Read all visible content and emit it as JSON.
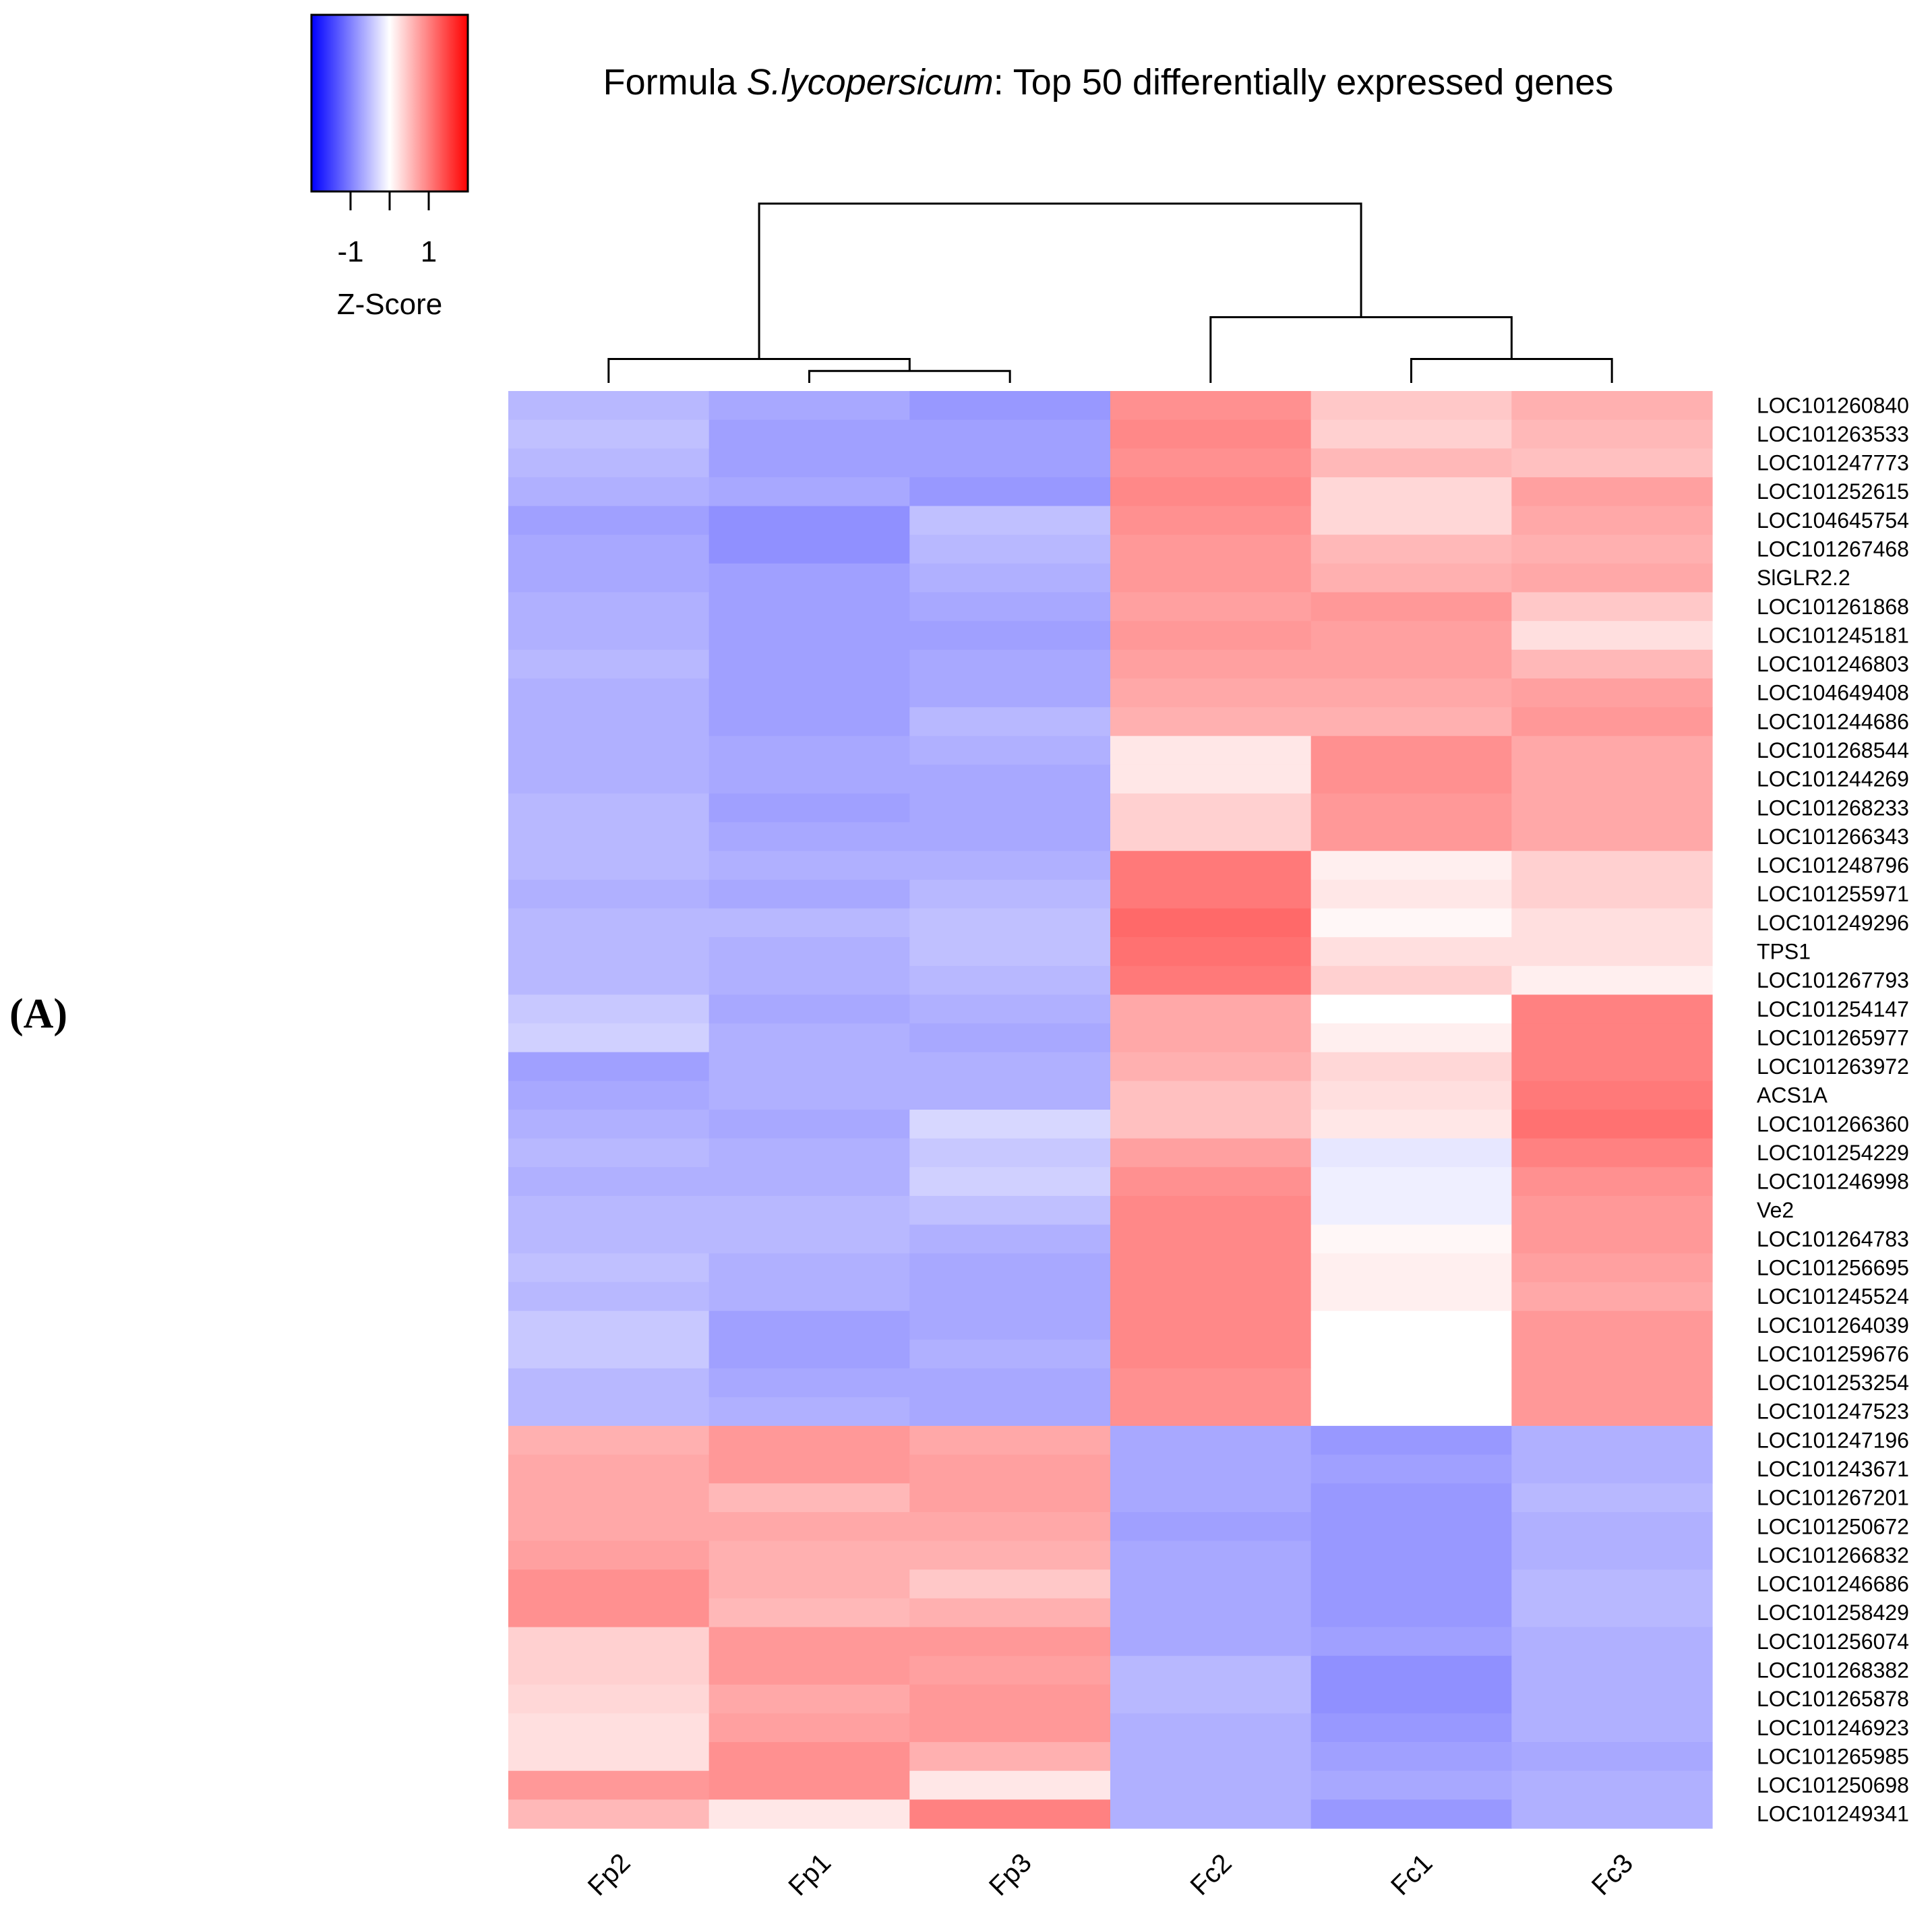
{
  "panel_label": "(A)",
  "chart_data": {
    "type": "heatmap",
    "title_prefix": "Formula ",
    "title_species": "S.lycopersicum",
    "title_suffix": ": Top 50 differentially expressed genes",
    "colorbar": {
      "label": "Z-Score",
      "ticks": [
        -1,
        1
      ],
      "tick_labels": [
        "-1",
        "1"
      ],
      "range": [
        -2,
        2
      ],
      "colors": {
        "low": "#0000ff",
        "mid": "#ffffff",
        "high": "#ff0000"
      }
    },
    "columns": [
      "Fp2",
      "Fp1",
      "Fp3",
      "Fc2",
      "Fc1",
      "Fc3"
    ],
    "column_dendrogram": {
      "merges": [
        {
          "left": "Fp1",
          "right": "Fp3",
          "height": 0.1
        },
        {
          "left": "Fc1",
          "right": "Fc3",
          "height": 0.2
        },
        {
          "left": "Fp2",
          "right": "Fp1+Fp3",
          "height": 0.2
        },
        {
          "left": "Fc2",
          "right": "Fc1+Fc3",
          "height": 0.55
        },
        {
          "left": "Fp",
          "right": "Fc",
          "height": 1.5
        }
      ]
    },
    "rows": [
      "LOC101260840",
      "LOC101263533",
      "LOC101247773",
      "LOC101252615",
      "LOC104645754",
      "LOC101267468",
      "SlGLR2.2",
      "LOC101261868",
      "LOC101245181",
      "LOC101246803",
      "LOC104649408",
      "LOC101244686",
      "LOC101268544",
      "LOC101244269",
      "LOC101268233",
      "LOC101266343",
      "LOC101248796",
      "LOC101255971",
      "LOC101249296",
      "TPS1",
      "LOC101267793",
      "LOC101254147",
      "LOC101265977",
      "LOC101263972",
      "ACS1A",
      "LOC101266360",
      "LOC101254229",
      "LOC101246998",
      "Ve2",
      "LOC101264783",
      "LOC101256695",
      "LOC101245524",
      "LOC101264039",
      "LOC101259676",
      "LOC101253254",
      "LOC101247523",
      "LOC101247196",
      "LOC101243671",
      "LOC101267201",
      "LOC101250672",
      "LOC101266832",
      "LOC101246686",
      "LOC101258429",
      "LOC101256074",
      "LOC101268382",
      "LOC101265878",
      "LOC101246923",
      "LOC101265985",
      "LOC101250698",
      "LOC101249341"
    ],
    "values": [
      [
        -0.9,
        -1.1,
        -1.3,
        1.4,
        0.7,
        1.0
      ],
      [
        -0.8,
        -1.2,
        -1.2,
        1.5,
        0.6,
        0.9
      ],
      [
        -0.9,
        -1.2,
        -1.2,
        1.4,
        0.9,
        0.8
      ],
      [
        -1.0,
        -1.1,
        -1.3,
        1.5,
        0.5,
        1.2
      ],
      [
        -1.2,
        -1.4,
        -0.8,
        1.4,
        0.5,
        1.1
      ],
      [
        -1.1,
        -1.4,
        -0.9,
        1.3,
        0.9,
        1.0
      ],
      [
        -1.1,
        -1.2,
        -1.0,
        1.3,
        1.0,
        1.1
      ],
      [
        -1.0,
        -1.2,
        -1.1,
        1.2,
        1.3,
        0.7
      ],
      [
        -1.0,
        -1.2,
        -1.2,
        1.3,
        1.2,
        0.4
      ],
      [
        -0.9,
        -1.2,
        -1.1,
        1.2,
        1.2,
        0.9
      ],
      [
        -1.0,
        -1.2,
        -1.1,
        1.1,
        1.1,
        1.2
      ],
      [
        -1.0,
        -1.2,
        -0.9,
        1.0,
        1.0,
        1.3
      ],
      [
        -1.0,
        -1.1,
        -1.0,
        0.3,
        1.4,
        1.1
      ],
      [
        -1.0,
        -1.1,
        -1.1,
        0.3,
        1.4,
        1.1
      ],
      [
        -0.9,
        -1.2,
        -1.1,
        0.6,
        1.3,
        1.1
      ],
      [
        -0.9,
        -1.1,
        -1.1,
        0.6,
        1.3,
        1.1
      ],
      [
        -0.9,
        -1.0,
        -1.0,
        1.7,
        0.2,
        0.6
      ],
      [
        -1.0,
        -1.1,
        -0.9,
        1.7,
        0.3,
        0.6
      ],
      [
        -0.9,
        -0.9,
        -0.8,
        1.9,
        0.1,
        0.4
      ],
      [
        -0.9,
        -1.0,
        -0.8,
        1.8,
        0.4,
        0.4
      ],
      [
        -0.9,
        -1.0,
        -0.9,
        1.7,
        0.6,
        0.2
      ],
      [
        -0.7,
        -1.1,
        -1.0,
        1.1,
        0.0,
        1.6
      ],
      [
        -0.6,
        -1.0,
        -1.1,
        1.1,
        0.2,
        1.6
      ],
      [
        -1.2,
        -1.0,
        -1.0,
        1.0,
        0.5,
        1.6
      ],
      [
        -1.1,
        -1.0,
        -1.0,
        0.8,
        0.4,
        1.7
      ],
      [
        -1.0,
        -1.1,
        -0.5,
        0.8,
        0.3,
        1.8
      ],
      [
        -0.9,
        -1.0,
        -0.7,
        1.2,
        -0.3,
        1.6
      ],
      [
        -1.0,
        -1.0,
        -0.6,
        1.4,
        -0.2,
        1.4
      ],
      [
        -0.9,
        -0.9,
        -0.8,
        1.5,
        -0.2,
        1.3
      ],
      [
        -0.9,
        -0.9,
        -1.0,
        1.5,
        0.1,
        1.3
      ],
      [
        -0.8,
        -1.0,
        -1.1,
        1.5,
        0.2,
        1.2
      ],
      [
        -0.9,
        -1.0,
        -1.1,
        1.5,
        0.2,
        1.1
      ],
      [
        -0.7,
        -1.2,
        -1.1,
        1.5,
        0.0,
        1.3
      ],
      [
        -0.7,
        -1.2,
        -1.0,
        1.5,
        0.0,
        1.3
      ],
      [
        -0.9,
        -1.1,
        -1.1,
        1.4,
        0.0,
        1.3
      ],
      [
        -0.9,
        -1.0,
        -1.1,
        1.4,
        0.0,
        1.3
      ],
      [
        1.0,
        1.3,
        1.1,
        -1.1,
        -1.3,
        -1.0
      ],
      [
        1.1,
        1.3,
        1.2,
        -1.1,
        -1.2,
        -1.0
      ],
      [
        1.1,
        0.9,
        1.2,
        -1.1,
        -1.3,
        -0.9
      ],
      [
        1.1,
        1.1,
        1.1,
        -1.2,
        -1.3,
        -1.0
      ],
      [
        1.2,
        1.0,
        1.0,
        -1.1,
        -1.3,
        -1.0
      ],
      [
        1.4,
        1.0,
        0.7,
        -1.1,
        -1.3,
        -0.9
      ],
      [
        1.4,
        0.9,
        1.0,
        -1.1,
        -1.3,
        -0.9
      ],
      [
        0.6,
        1.3,
        1.3,
        -1.1,
        -1.2,
        -1.0
      ],
      [
        0.6,
        1.3,
        1.2,
        -0.9,
        -1.4,
        -1.0
      ],
      [
        0.5,
        1.1,
        1.3,
        -0.9,
        -1.4,
        -1.0
      ],
      [
        0.4,
        1.2,
        1.3,
        -1.0,
        -1.3,
        -1.0
      ],
      [
        0.4,
        1.4,
        1.0,
        -1.0,
        -1.2,
        -1.1
      ],
      [
        1.3,
        1.4,
        0.3,
        -1.0,
        -1.1,
        -1.0
      ],
      [
        0.9,
        0.3,
        1.6,
        -1.0,
        -1.3,
        -1.0
      ]
    ]
  }
}
